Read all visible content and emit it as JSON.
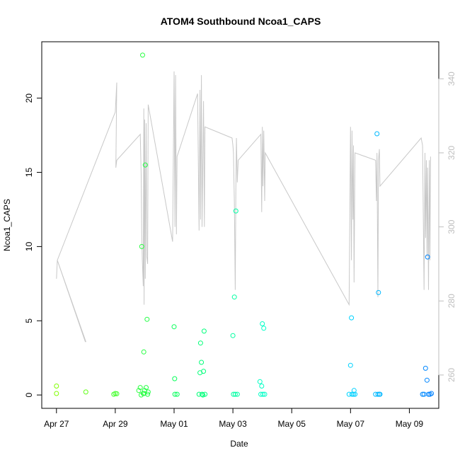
{
  "chart_data": {
    "type": "scatter",
    "title": "ATOM4 Southbound Ncoa1_CAPS",
    "xlabel": "Date",
    "ylabel": "Ncoa1_CAPS",
    "x_tick_labels": [
      "Apr 27",
      "Apr 29",
      "May 01",
      "May 03",
      "May 05",
      "May 07",
      "May 09"
    ],
    "x_tick_days": [
      0,
      2,
      4,
      6,
      8,
      10,
      12
    ],
    "xlim_days": [
      -0.5,
      13.0
    ],
    "ylim": [
      -0.9,
      23.8
    ],
    "y_ticks": [
      0,
      5,
      10,
      15,
      20
    ],
    "y2lim": [
      251,
      350
    ],
    "y2_ticks": [
      260,
      280,
      300,
      320,
      340
    ],
    "colors": {
      "axis": "#000000",
      "secondary_line": "#c8c8c8",
      "secondary_axis": "#bebebe"
    },
    "series": [
      {
        "type": "scatter",
        "axis": "left",
        "color_gradient": [
          "#80ff00",
          "#00ff60",
          "#00ffff",
          "#0080ff"
        ],
        "points": [
          [
            0.0,
            0.6
          ],
          [
            0.0,
            0.1
          ],
          [
            1.0,
            0.2
          ],
          [
            1.95,
            0.05
          ],
          [
            2.0,
            0.1
          ],
          [
            2.05,
            0.08
          ],
          [
            2.8,
            0.3
          ],
          [
            2.85,
            0.5
          ],
          [
            2.9,
            10.0
          ],
          [
            2.93,
            22.9
          ],
          [
            2.95,
            0.1
          ],
          [
            2.97,
            2.9
          ],
          [
            3.0,
            0.3
          ],
          [
            3.02,
            15.5
          ],
          [
            3.05,
            0.5
          ],
          [
            3.08,
            5.1
          ],
          [
            3.1,
            0.05
          ],
          [
            3.12,
            0.2
          ],
          [
            2.88,
            0.0
          ],
          [
            2.98,
            0.1
          ],
          [
            4.0,
            4.6
          ],
          [
            4.02,
            1.1
          ],
          [
            4.03,
            0.05
          ],
          [
            4.1,
            0.05
          ],
          [
            4.85,
            0.05
          ],
          [
            4.88,
            1.5
          ],
          [
            4.9,
            3.5
          ],
          [
            4.93,
            2.2
          ],
          [
            4.95,
            0.05
          ],
          [
            5.0,
            1.6
          ],
          [
            5.02,
            4.3
          ],
          [
            5.05,
            0.05
          ],
          [
            4.98,
            0.0
          ],
          [
            6.0,
            4.0
          ],
          [
            6.02,
            0.05
          ],
          [
            6.05,
            6.6
          ],
          [
            6.08,
            0.05
          ],
          [
            6.1,
            12.4
          ],
          [
            6.15,
            0.05
          ],
          [
            6.92,
            0.9
          ],
          [
            6.95,
            0.05
          ],
          [
            6.98,
            0.6
          ],
          [
            7.0,
            4.8
          ],
          [
            7.02,
            0.05
          ],
          [
            7.05,
            4.5
          ],
          [
            7.08,
            0.05
          ],
          [
            9.95,
            0.05
          ],
          [
            10.0,
            2.0
          ],
          [
            10.03,
            5.2
          ],
          [
            10.05,
            0.05
          ],
          [
            10.1,
            0.05
          ],
          [
            10.12,
            0.3
          ],
          [
            10.15,
            0.05
          ],
          [
            10.85,
            0.05
          ],
          [
            10.9,
            17.6
          ],
          [
            10.93,
            0.05
          ],
          [
            10.95,
            6.9
          ],
          [
            10.98,
            0.05
          ],
          [
            11.0,
            0.05
          ],
          [
            12.45,
            0.05
          ],
          [
            12.5,
            0.05
          ],
          [
            12.55,
            1.8
          ],
          [
            12.6,
            1.0
          ],
          [
            12.62,
            9.3
          ],
          [
            12.65,
            0.05
          ],
          [
            12.7,
            0.05
          ],
          [
            12.75,
            0.1
          ]
        ]
      },
      {
        "type": "line",
        "axis": "right",
        "color": "#c8c8c8",
        "points": [
          [
            0.0,
            286
          ],
          [
            0.03,
            291
          ],
          [
            1.0,
            269
          ],
          [
            0.98,
            269
          ],
          [
            0.03,
            291
          ],
          [
            1.95,
            330
          ],
          [
            2.0,
            331
          ],
          [
            2.05,
            339
          ],
          [
            2.02,
            316
          ],
          [
            2.05,
            318
          ],
          [
            2.85,
            325
          ],
          [
            2.88,
            314
          ],
          [
            2.9,
            298
          ],
          [
            2.92,
            291
          ],
          [
            2.95,
            284
          ],
          [
            2.97,
            332
          ],
          [
            2.98,
            279
          ],
          [
            3.0,
            329
          ],
          [
            3.02,
            286
          ],
          [
            3.05,
            328
          ],
          [
            3.07,
            292
          ],
          [
            3.1,
            290
          ],
          [
            3.12,
            333
          ],
          [
            3.95,
            296
          ],
          [
            4.0,
            342
          ],
          [
            4.03,
            300
          ],
          [
            4.05,
            341
          ],
          [
            4.08,
            298
          ],
          [
            4.1,
            319
          ],
          [
            4.8,
            336
          ],
          [
            4.85,
            299
          ],
          [
            4.88,
            337
          ],
          [
            4.9,
            302
          ],
          [
            4.93,
            341
          ],
          [
            4.95,
            300
          ],
          [
            4.98,
            319
          ],
          [
            5.0,
            334
          ],
          [
            5.03,
            300
          ],
          [
            5.05,
            327
          ],
          [
            5.97,
            324
          ],
          [
            6.0,
            322
          ],
          [
            6.02,
            320
          ],
          [
            6.05,
            306
          ],
          [
            6.08,
            283
          ],
          [
            6.1,
            311
          ],
          [
            6.12,
            324
          ],
          [
            6.15,
            312
          ],
          [
            6.18,
            318
          ],
          [
            6.95,
            325
          ],
          [
            6.98,
            304
          ],
          [
            7.0,
            327
          ],
          [
            7.02,
            311
          ],
          [
            7.05,
            326
          ],
          [
            7.08,
            307
          ],
          [
            7.1,
            320
          ],
          [
            9.95,
            279
          ],
          [
            10.0,
            327
          ],
          [
            10.03,
            291
          ],
          [
            10.05,
            326
          ],
          [
            10.08,
            302
          ],
          [
            10.1,
            322
          ],
          [
            10.12,
            285
          ],
          [
            10.15,
            320
          ],
          [
            10.85,
            318
          ],
          [
            10.88,
            307
          ],
          [
            10.9,
            320
          ],
          [
            10.93,
            281
          ],
          [
            10.95,
            318
          ],
          [
            10.98,
            321
          ],
          [
            11.0,
            311
          ],
          [
            12.4,
            324
          ],
          [
            12.45,
            322
          ],
          [
            12.5,
            283
          ],
          [
            12.53,
            320
          ],
          [
            12.55,
            297
          ],
          [
            12.58,
            318
          ],
          [
            12.6,
            292
          ],
          [
            12.62,
            316
          ],
          [
            12.65,
            283
          ],
          [
            12.68,
            318
          ],
          [
            12.7,
            291
          ],
          [
            12.72,
            319
          ]
        ]
      }
    ]
  }
}
